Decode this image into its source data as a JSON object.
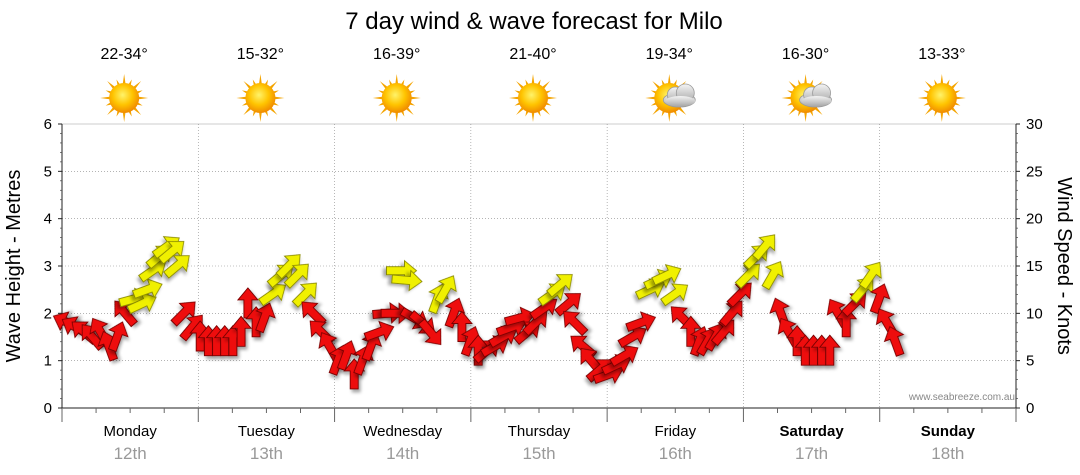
{
  "chart_data": {
    "type": "wind-wave-forecast",
    "title": "7 day wind & wave forecast for Milo",
    "ylabel_left": "Wave Height - Metres",
    "ylabel_right": "Wind Speed - Knots",
    "ylim_left": [
      0,
      6
    ],
    "ylim_right": [
      0,
      30
    ],
    "yticks_left": [
      "0",
      "1",
      "2",
      "3",
      "4",
      "5",
      "6"
    ],
    "yticks_right": [
      "0",
      "5",
      "10",
      "15",
      "20",
      "25",
      "30"
    ],
    "grid": true,
    "watermark": "www.seabreeze.com.au",
    "days": [
      {
        "day": "Monday",
        "date": "12th",
        "temp": "22-34°",
        "weather": "sunny",
        "bold": false
      },
      {
        "day": "Tuesday",
        "date": "13th",
        "temp": "15-32°",
        "weather": "sunny",
        "bold": false
      },
      {
        "day": "Wednesday",
        "date": "14th",
        "temp": "16-39°",
        "weather": "sunny",
        "bold": false
      },
      {
        "day": "Thursday",
        "date": "15th",
        "temp": "21-40°",
        "weather": "sunny",
        "bold": false
      },
      {
        "day": "Friday",
        "date": "16th",
        "temp": "19-34°",
        "weather": "partly-cloudy",
        "bold": false
      },
      {
        "day": "Saturday",
        "date": "17th",
        "temp": "16-30°",
        "weather": "partly-cloudy",
        "bold": true
      },
      {
        "day": "Sunday",
        "date": "18th",
        "temp": "13-33°",
        "weather": "sunny",
        "bold": true
      }
    ],
    "wind_series": [
      {
        "t": 0.0,
        "speed": 9.0,
        "dir": 115,
        "color": "red"
      },
      {
        "t": 0.06,
        "speed": 8.5,
        "dir": 120,
        "color": "red"
      },
      {
        "t": 0.12,
        "speed": 8.0,
        "dir": 130,
        "color": "red"
      },
      {
        "t": 0.18,
        "speed": 7.5,
        "dir": 140,
        "color": "red"
      },
      {
        "t": 0.24,
        "speed": 8.0,
        "dir": 150,
        "color": "red"
      },
      {
        "t": 0.3,
        "speed": 6.5,
        "dir": 160,
        "color": "red"
      },
      {
        "t": 0.36,
        "speed": 7.5,
        "dir": 200,
        "color": "red"
      },
      {
        "t": 0.42,
        "speed": 10.0,
        "dir": 140,
        "color": "red"
      },
      {
        "t": 0.48,
        "speed": 11.5,
        "dir": 255,
        "color": "yellow"
      },
      {
        "t": 0.54,
        "speed": 11.0,
        "dir": 245,
        "color": "yellow"
      },
      {
        "t": 0.58,
        "speed": 12.5,
        "dir": 250,
        "color": "yellow"
      },
      {
        "t": 0.62,
        "speed": 14.5,
        "dir": 235,
        "color": "yellow"
      },
      {
        "t": 0.67,
        "speed": 16.0,
        "dir": 230,
        "color": "yellow"
      },
      {
        "t": 0.72,
        "speed": 17.0,
        "dir": 235,
        "color": "yellow"
      },
      {
        "t": 0.76,
        "speed": 16.5,
        "dir": 230,
        "color": "yellow"
      },
      {
        "t": 0.8,
        "speed": 15.0,
        "dir": 230,
        "color": "yellow"
      },
      {
        "t": 0.85,
        "speed": 10.0,
        "dir": 225,
        "color": "red"
      },
      {
        "t": 0.91,
        "speed": 8.5,
        "dir": 220,
        "color": "red"
      },
      {
        "t": 0.97,
        "speed": 7.5,
        "dir": 180,
        "color": "red"
      },
      {
        "t": 1.03,
        "speed": 7.0,
        "dir": 180,
        "color": "red"
      },
      {
        "t": 1.09,
        "speed": 7.0,
        "dir": 180,
        "color": "red"
      },
      {
        "t": 1.15,
        "speed": 7.0,
        "dir": 180,
        "color": "red"
      },
      {
        "t": 1.21,
        "speed": 7.0,
        "dir": 180,
        "color": "red"
      },
      {
        "t": 1.27,
        "speed": 8.0,
        "dir": 180,
        "color": "red"
      },
      {
        "t": 1.32,
        "speed": 11.0,
        "dir": 180,
        "color": "red"
      },
      {
        "t": 1.38,
        "speed": 9.0,
        "dir": 180,
        "color": "red"
      },
      {
        "t": 1.44,
        "speed": 9.5,
        "dir": 200,
        "color": "red"
      },
      {
        "t": 1.5,
        "speed": 12.0,
        "dir": 235,
        "color": "yellow"
      },
      {
        "t": 1.56,
        "speed": 14.0,
        "dir": 230,
        "color": "yellow"
      },
      {
        "t": 1.62,
        "speed": 15.0,
        "dir": 225,
        "color": "yellow"
      },
      {
        "t": 1.68,
        "speed": 14.0,
        "dir": 225,
        "color": "yellow"
      },
      {
        "t": 1.74,
        "speed": 12.0,
        "dir": 225,
        "color": "yellow"
      },
      {
        "t": 1.8,
        "speed": 10.0,
        "dir": 135,
        "color": "red"
      },
      {
        "t": 1.86,
        "speed": 8.0,
        "dir": 135,
        "color": "red"
      },
      {
        "t": 1.92,
        "speed": 6.5,
        "dir": 150,
        "color": "red"
      },
      {
        "t": 1.98,
        "speed": 5.0,
        "dir": 200,
        "color": "red"
      },
      {
        "t": 2.04,
        "speed": 5.5,
        "dir": 200,
        "color": "red"
      },
      {
        "t": 2.1,
        "speed": 3.5,
        "dir": 180,
        "color": "red"
      },
      {
        "t": 2.16,
        "speed": 5.0,
        "dir": 200,
        "color": "red"
      },
      {
        "t": 2.22,
        "speed": 6.5,
        "dir": 200,
        "color": "red"
      },
      {
        "t": 2.28,
        "speed": 8.0,
        "dir": 250,
        "color": "red"
      },
      {
        "t": 2.34,
        "speed": 10.0,
        "dir": 265,
        "color": "red"
      },
      {
        "t": 2.4,
        "speed": 10.0,
        "dir": 270,
        "color": "red"
      },
      {
        "t": 2.44,
        "speed": 14.5,
        "dir": 270,
        "color": "yellow"
      },
      {
        "t": 2.48,
        "speed": 13.5,
        "dir": 275,
        "color": "yellow"
      },
      {
        "t": 2.54,
        "speed": 9.5,
        "dir": 300,
        "color": "red"
      },
      {
        "t": 2.6,
        "speed": 9.0,
        "dir": 310,
        "color": "red"
      },
      {
        "t": 2.66,
        "speed": 8.0,
        "dir": 320,
        "color": "red"
      },
      {
        "t": 2.71,
        "speed": 11.5,
        "dir": 200,
        "color": "yellow"
      },
      {
        "t": 2.77,
        "speed": 12.5,
        "dir": 210,
        "color": "yellow"
      },
      {
        "t": 2.83,
        "speed": 10.0,
        "dir": 200,
        "color": "red"
      },
      {
        "t": 2.89,
        "speed": 8.5,
        "dir": 180,
        "color": "red"
      },
      {
        "t": 2.95,
        "speed": 7.0,
        "dir": 200,
        "color": "red"
      },
      {
        "t": 3.01,
        "speed": 6.0,
        "dir": 180,
        "color": "red"
      },
      {
        "t": 3.07,
        "speed": 6.0,
        "dir": 230,
        "color": "red"
      },
      {
        "t": 3.13,
        "speed": 6.5,
        "dir": 240,
        "color": "red"
      },
      {
        "t": 3.19,
        "speed": 7.5,
        "dir": 240,
        "color": "red"
      },
      {
        "t": 3.25,
        "speed": 8.5,
        "dir": 250,
        "color": "red"
      },
      {
        "t": 3.31,
        "speed": 9.5,
        "dir": 255,
        "color": "red"
      },
      {
        "t": 3.37,
        "speed": 8.0,
        "dir": 230,
        "color": "red"
      },
      {
        "t": 3.43,
        "speed": 9.0,
        "dir": 225,
        "color": "red"
      },
      {
        "t": 3.49,
        "speed": 10.5,
        "dir": 235,
        "color": "red"
      },
      {
        "t": 3.55,
        "speed": 12.0,
        "dir": 235,
        "color": "yellow"
      },
      {
        "t": 3.61,
        "speed": 13.0,
        "dir": 230,
        "color": "yellow"
      },
      {
        "t": 3.67,
        "speed": 11.0,
        "dir": 230,
        "color": "red"
      },
      {
        "t": 3.72,
        "speed": 9.0,
        "dir": 135,
        "color": "red"
      },
      {
        "t": 3.78,
        "speed": 6.5,
        "dir": 130,
        "color": "red"
      },
      {
        "t": 3.84,
        "speed": 5.0,
        "dir": 140,
        "color": "red"
      },
      {
        "t": 3.9,
        "speed": 4.0,
        "dir": 230,
        "color": "red"
      },
      {
        "t": 3.96,
        "speed": 3.5,
        "dir": 250,
        "color": "red"
      },
      {
        "t": 4.02,
        "speed": 4.5,
        "dir": 245,
        "color": "red"
      },
      {
        "t": 4.08,
        "speed": 5.5,
        "dir": 240,
        "color": "red"
      },
      {
        "t": 4.14,
        "speed": 7.5,
        "dir": 240,
        "color": "red"
      },
      {
        "t": 4.2,
        "speed": 9.0,
        "dir": 250,
        "color": "red"
      },
      {
        "t": 4.27,
        "speed": 12.5,
        "dir": 245,
        "color": "yellow"
      },
      {
        "t": 4.33,
        "speed": 13.5,
        "dir": 245,
        "color": "yellow"
      },
      {
        "t": 4.39,
        "speed": 14.0,
        "dir": 245,
        "color": "yellow"
      },
      {
        "t": 4.45,
        "speed": 12.0,
        "dir": 235,
        "color": "yellow"
      },
      {
        "t": 4.51,
        "speed": 9.5,
        "dir": 135,
        "color": "red"
      },
      {
        "t": 4.57,
        "speed": 8.0,
        "dir": 180,
        "color": "red"
      },
      {
        "t": 4.63,
        "speed": 7.0,
        "dir": 200,
        "color": "red"
      },
      {
        "t": 4.69,
        "speed": 7.0,
        "dir": 210,
        "color": "red"
      },
      {
        "t": 4.75,
        "speed": 7.5,
        "dir": 210,
        "color": "red"
      },
      {
        "t": 4.81,
        "speed": 8.0,
        "dir": 220,
        "color": "red"
      },
      {
        "t": 4.87,
        "speed": 10.0,
        "dir": 220,
        "color": "red"
      },
      {
        "t": 4.93,
        "speed": 12.0,
        "dir": 225,
        "color": "red"
      },
      {
        "t": 4.99,
        "speed": 14.0,
        "dir": 225,
        "color": "yellow"
      },
      {
        "t": 5.05,
        "speed": 16.0,
        "dir": 225,
        "color": "yellow"
      },
      {
        "t": 5.11,
        "speed": 17.0,
        "dir": 220,
        "color": "yellow"
      },
      {
        "t": 5.17,
        "speed": 14.0,
        "dir": 210,
        "color": "yellow"
      },
      {
        "t": 5.23,
        "speed": 10.0,
        "dir": 160,
        "color": "red"
      },
      {
        "t": 5.29,
        "speed": 8.0,
        "dir": 150,
        "color": "red"
      },
      {
        "t": 5.35,
        "speed": 7.0,
        "dir": 180,
        "color": "red"
      },
      {
        "t": 5.41,
        "speed": 6.0,
        "dir": 180,
        "color": "red"
      },
      {
        "t": 5.47,
        "speed": 6.0,
        "dir": 180,
        "color": "red"
      },
      {
        "t": 5.53,
        "speed": 6.0,
        "dir": 180,
        "color": "red"
      },
      {
        "t": 5.59,
        "speed": 6.0,
        "dir": 180,
        "color": "red"
      },
      {
        "t": 5.65,
        "speed": 10.0,
        "dir": 150,
        "color": "red"
      },
      {
        "t": 5.71,
        "speed": 9.0,
        "dir": 180,
        "color": "red"
      },
      {
        "t": 5.77,
        "speed": 11.0,
        "dir": 225,
        "color": "red"
      },
      {
        "t": 5.83,
        "speed": 12.5,
        "dir": 220,
        "color": "yellow"
      },
      {
        "t": 5.89,
        "speed": 14.0,
        "dir": 215,
        "color": "yellow"
      },
      {
        "t": 5.95,
        "speed": 11.5,
        "dir": 200,
        "color": "red"
      },
      {
        "t": 6.01,
        "speed": 9.0,
        "dir": 150,
        "color": "red"
      },
      {
        "t": 6.07,
        "speed": 7.0,
        "dir": 160,
        "color": "red"
      }
    ],
    "colors": {
      "wind_light": "#ee1111",
      "wind_strong": "#f0f000",
      "grid": "#888888",
      "date_text": "#999999"
    }
  }
}
